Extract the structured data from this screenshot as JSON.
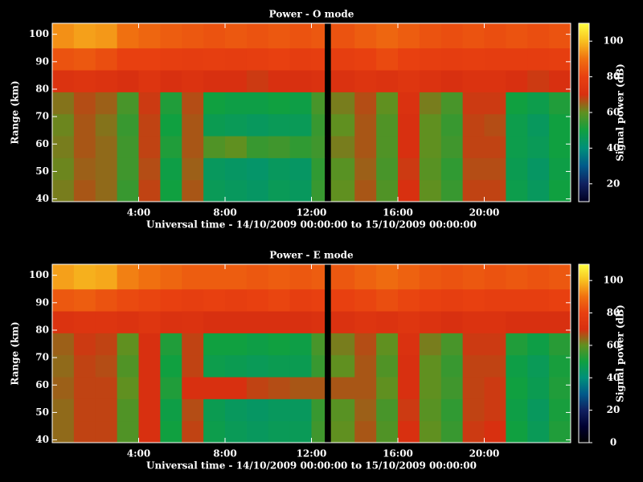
{
  "chart_data": [
    {
      "type": "heatmap",
      "title": "Power - O mode",
      "xlabel": "Universal time - 14/10/2009 00:00:00 to 15/10/2009 00:00:00",
      "ylabel": "Range (km)",
      "colorbar_label": "Signal power (dB)",
      "x_edges": [
        0,
        1,
        2,
        3,
        4,
        5,
        6,
        7,
        8,
        9,
        10,
        11,
        12,
        12.6,
        12.9,
        14,
        15,
        16,
        17,
        18,
        19,
        20,
        21,
        22,
        23,
        24
      ],
      "y_edges": [
        39,
        47,
        55,
        63,
        71,
        79,
        87,
        95,
        104
      ],
      "z": [
        [
          62,
          66,
          64,
          55,
          68,
          50,
          66,
          46,
          45,
          44,
          46,
          45,
          55,
          null,
          60,
          66,
          58,
          70,
          60,
          55,
          68,
          68,
          48,
          45,
          50
        ],
        [
          61,
          65,
          64,
          56,
          67,
          49,
          65,
          45,
          44,
          43,
          45,
          44,
          54,
          null,
          59,
          65,
          57,
          69,
          59,
          54,
          67,
          67,
          47,
          44,
          49
        ],
        [
          62,
          66,
          64,
          56,
          68,
          52,
          66,
          58,
          60,
          55,
          56,
          54,
          56,
          null,
          62,
          66,
          58,
          70,
          60,
          56,
          68,
          68,
          48,
          46,
          50
        ],
        [
          61,
          66,
          63,
          55,
          68,
          50,
          66,
          47,
          46,
          45,
          46,
          46,
          55,
          null,
          60,
          66,
          58,
          70,
          60,
          55,
          68,
          67,
          48,
          45,
          50
        ],
        [
          63,
          67,
          65,
          57,
          69,
          52,
          67,
          50,
          49,
          49,
          50,
          49,
          57,
          null,
          62,
          67,
          60,
          71,
          62,
          57,
          69,
          69,
          50,
          48,
          52
        ],
        [
          72,
          73,
          72,
          70,
          73,
          70,
          72,
          70,
          70,
          69,
          70,
          70,
          71,
          null,
          71,
          73,
          72,
          74,
          72,
          70,
          72,
          72,
          70,
          69,
          70
        ],
        [
          84,
          85,
          83,
          80,
          80,
          79,
          78,
          79,
          78,
          79,
          80,
          78,
          79,
          null,
          79,
          80,
          82,
          80,
          79,
          78,
          79,
          78,
          78,
          78,
          79
        ],
        [
          94,
          96,
          95,
          90,
          88,
          86,
          85,
          84,
          85,
          84,
          85,
          84,
          85,
          null,
          84,
          86,
          88,
          86,
          84,
          83,
          84,
          83,
          84,
          83,
          84
        ]
      ],
      "xlim": [
        0,
        24
      ],
      "ylim": [
        39,
        104
      ],
      "xticks": [
        {
          "value": 4,
          "label": "4:00"
        },
        {
          "value": 8,
          "label": "8:00"
        },
        {
          "value": 12,
          "label": "12:00"
        },
        {
          "value": 16,
          "label": "16:00"
        },
        {
          "value": 20,
          "label": "20:00"
        }
      ],
      "yticks": [
        40,
        50,
        60,
        70,
        80,
        90,
        100
      ],
      "clim": [
        10,
        110
      ],
      "cticks": [
        20,
        40,
        60,
        80,
        100
      ],
      "colormap": [
        "#000020",
        "#102060",
        "#005a8a",
        "#00907a",
        "#10a040",
        "#609020",
        "#d83010",
        "#e84010",
        "#f07010",
        "#f8c020",
        "#ffff40"
      ]
    },
    {
      "type": "heatmap",
      "title": "Power - E mode",
      "xlabel": "Universal time - 14/10/2009 00:00:00 to 15/10/2009 00:00:00",
      "ylabel": "Range (km)",
      "colorbar_label": "Signal power (dB)",
      "x_edges": [
        0,
        1,
        2,
        3,
        4,
        5,
        6,
        7,
        8,
        9,
        10,
        11,
        12,
        12.6,
        12.9,
        14,
        15,
        16,
        17,
        18,
        19,
        20,
        21,
        22,
        23,
        24
      ],
      "y_edges": [
        39,
        47,
        55,
        63,
        71,
        79,
        87,
        95,
        104
      ],
      "z": [
        [
          64,
          68,
          68,
          58,
          70,
          50,
          68,
          48,
          46,
          45,
          46,
          46,
          56,
          null,
          60,
          66,
          58,
          70,
          60,
          55,
          69,
          70,
          50,
          46,
          52
        ],
        [
          64,
          68,
          68,
          58,
          70,
          49,
          67,
          47,
          45,
          44,
          45,
          45,
          55,
          null,
          59,
          65,
          57,
          69,
          59,
          54,
          68,
          69,
          49,
          45,
          51
        ],
        [
          65,
          68,
          68,
          60,
          70,
          52,
          70,
          70,
          70,
          68,
          67,
          66,
          66,
          null,
          66,
          66,
          60,
          70,
          60,
          56,
          68,
          69,
          50,
          47,
          52
        ],
        [
          64,
          68,
          67,
          58,
          70,
          50,
          68,
          48,
          47,
          46,
          47,
          47,
          55,
          null,
          60,
          66,
          58,
          70,
          60,
          55,
          68,
          68,
          49,
          46,
          51
        ],
        [
          65,
          69,
          68,
          60,
          70,
          52,
          68,
          50,
          50,
          49,
          50,
          49,
          57,
          null,
          62,
          67,
          60,
          71,
          62,
          57,
          69,
          69,
          52,
          49,
          53
        ],
        [
          72,
          73,
          73,
          72,
          74,
          71,
          72,
          70,
          70,
          70,
          70,
          70,
          71,
          null,
          71,
          73,
          72,
          74,
          72,
          70,
          72,
          72,
          70,
          70,
          70
        ],
        [
          85,
          86,
          84,
          82,
          81,
          80,
          79,
          80,
          79,
          80,
          81,
          79,
          80,
          null,
          80,
          81,
          83,
          81,
          80,
          79,
          80,
          79,
          79,
          79,
          80
        ],
        [
          96,
          98,
          97,
          92,
          90,
          88,
          86,
          86,
          86,
          85,
          86,
          85,
          86,
          null,
          85,
          87,
          89,
          87,
          85,
          84,
          85,
          84,
          85,
          84,
          85
        ]
      ],
      "xlim": [
        0,
        24
      ],
      "ylim": [
        39,
        104
      ],
      "xticks": [
        {
          "value": 4,
          "label": "4:00"
        },
        {
          "value": 8,
          "label": "8:00"
        },
        {
          "value": 12,
          "label": "12:00"
        },
        {
          "value": 16,
          "label": "16:00"
        },
        {
          "value": 20,
          "label": "20:00"
        }
      ],
      "yticks": [
        40,
        50,
        60,
        70,
        80,
        90,
        100
      ],
      "clim": [
        0,
        110
      ],
      "cticks": [
        0,
        20,
        40,
        60,
        80,
        100
      ],
      "colormap": [
        "#000000",
        "#000030",
        "#102060",
        "#005a8a",
        "#00907a",
        "#10a040",
        "#609020",
        "#d83010",
        "#e84010",
        "#f07010",
        "#f8c020",
        "#ffff40"
      ]
    }
  ]
}
